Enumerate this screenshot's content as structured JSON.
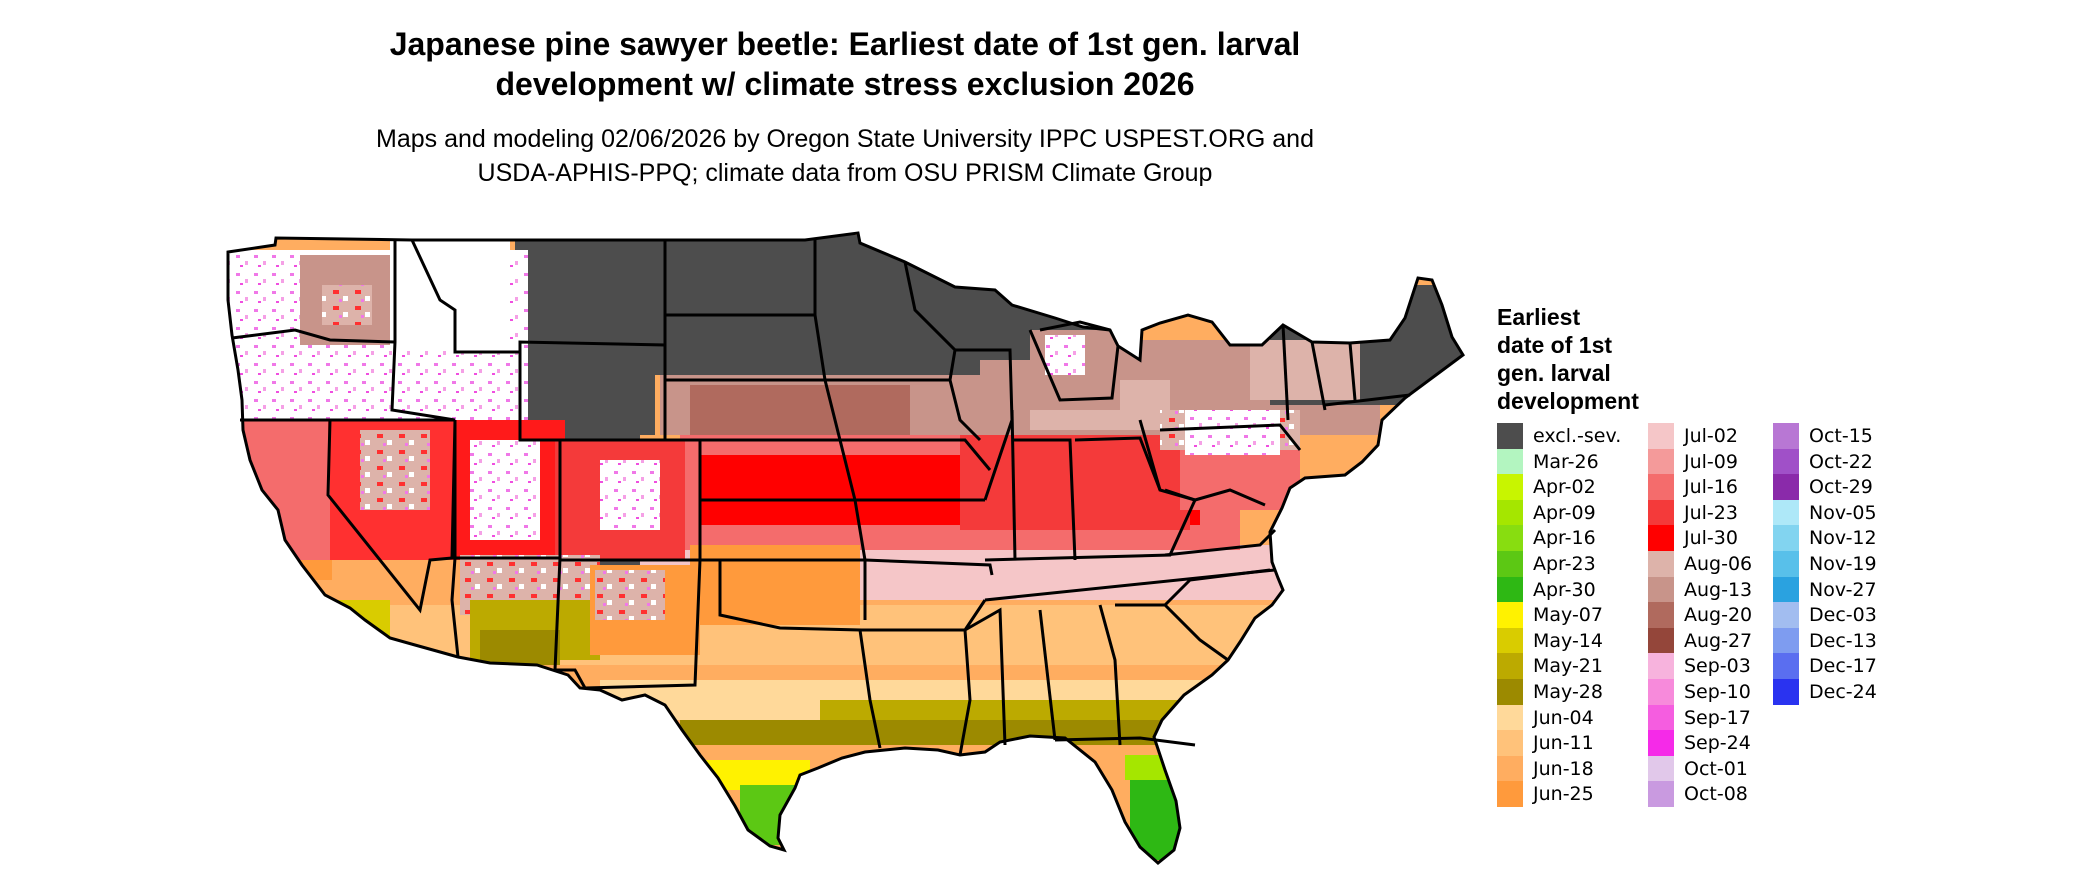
{
  "title_lines": [
    "Japanese pine sawyer beetle: Earliest date of 1st gen. larval",
    "development w/ climate stress exclusion 2026"
  ],
  "subtitle_lines": [
    "Maps and modeling 02/06/2026 by Oregon State University IPPC USPEST.ORG and",
    "USDA-APHIS-PPQ; climate data from OSU PRISM Climate Group"
  ],
  "legend": {
    "title_lines": [
      "Earliest",
      "date of 1st",
      "gen. larval",
      "development"
    ],
    "columns": [
      [
        {
          "label": "excl.-sev.",
          "color": "#4d4d4d"
        },
        {
          "label": "Mar-26",
          "color": "#b3f5c0"
        },
        {
          "label": "Apr-02",
          "color": "#c8f500"
        },
        {
          "label": "Apr-09",
          "color": "#a5e600"
        },
        {
          "label": "Apr-16",
          "color": "#88dd10"
        },
        {
          "label": "Apr-23",
          "color": "#5cc814"
        },
        {
          "label": "Apr-30",
          "color": "#2eb814"
        },
        {
          "label": "May-07",
          "color": "#fff200"
        },
        {
          "label": "May-14",
          "color": "#d9cc00"
        },
        {
          "label": "May-21",
          "color": "#bcaa00"
        },
        {
          "label": "May-28",
          "color": "#9c8a00"
        },
        {
          "label": "Jun-04",
          "color": "#ffd99a"
        },
        {
          "label": "Jun-11",
          "color": "#ffc27a"
        },
        {
          "label": "Jun-18",
          "color": "#ffad60"
        },
        {
          "label": "Jun-25",
          "color": "#ff9a3c"
        }
      ],
      [
        {
          "label": "Jul-02",
          "color": "#f5c6c8"
        },
        {
          "label": "Jul-09",
          "color": "#f49a9a"
        },
        {
          "label": "Jul-16",
          "color": "#f46c6c"
        },
        {
          "label": "Jul-23",
          "color": "#f43a3a"
        },
        {
          "label": "Jul-30",
          "color": "#ff0000"
        },
        {
          "label": "Aug-06",
          "color": "#ddb3aa"
        },
        {
          "label": "Aug-13",
          "color": "#c8948a"
        },
        {
          "label": "Aug-20",
          "color": "#b06a5e"
        },
        {
          "label": "Aug-27",
          "color": "#94463a"
        },
        {
          "label": "Sep-03",
          "color": "#f7b3dd"
        },
        {
          "label": "Sep-10",
          "color": "#f78adb"
        },
        {
          "label": "Sep-17",
          "color": "#f55de0"
        },
        {
          "label": "Sep-24",
          "color": "#f52ae8"
        },
        {
          "label": "Oct-01",
          "color": "#e1c8ea"
        },
        {
          "label": "Oct-08",
          "color": "#c99ae0"
        }
      ],
      [
        {
          "label": "Oct-15",
          "color": "#b877d4"
        },
        {
          "label": "Oct-22",
          "color": "#a050c8"
        },
        {
          "label": "Oct-29",
          "color": "#8a2aaa"
        },
        {
          "label": "Nov-05",
          "color": "#aee8f8"
        },
        {
          "label": "Nov-12",
          "color": "#82d4f0"
        },
        {
          "label": "Nov-19",
          "color": "#58c0ea"
        },
        {
          "label": "Nov-27",
          "color": "#2aa2e0"
        },
        {
          "label": "Dec-03",
          "color": "#a2bdf0"
        },
        {
          "label": "Dec-13",
          "color": "#7e9cf0"
        },
        {
          "label": "Dec-17",
          "color": "#5a6ef0"
        },
        {
          "label": "Dec-24",
          "color": "#2a33f0"
        }
      ]
    ]
  },
  "colors": {
    "outline": "#000000",
    "background": "#ffffff"
  }
}
